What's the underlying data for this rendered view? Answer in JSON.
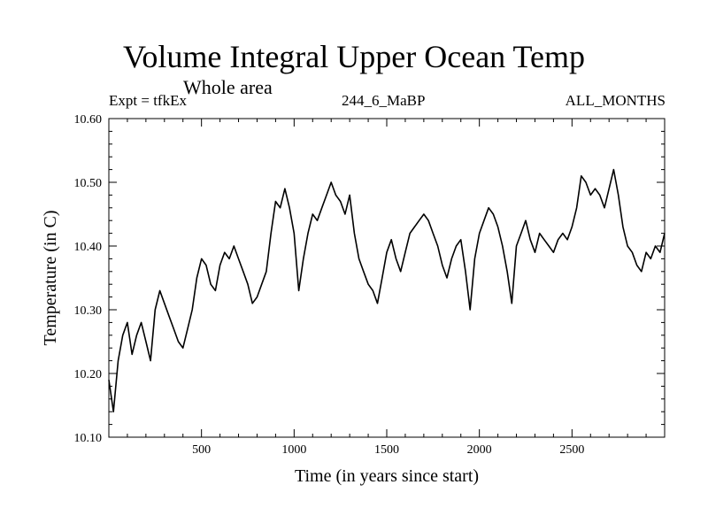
{
  "chart_data": {
    "type": "line",
    "title": "Volume Integral Upper Ocean Temp",
    "subtitle": "Whole area",
    "header_left": "Expt = tfkEx",
    "header_center": "244_6_MaBP",
    "header_right": "ALL_MONTHS",
    "xlabel": "Time (in years since start)",
    "ylabel": "Temperature (in C)",
    "xlim": [
      0,
      3000
    ],
    "ylim": [
      10.1,
      10.6
    ],
    "xticks": [
      500,
      1000,
      1500,
      2000,
      2500
    ],
    "xtick_labels": [
      "500",
      "1000",
      "1500",
      "2000",
      "2500"
    ],
    "yticks": [
      10.1,
      10.2,
      10.3,
      10.4,
      10.5,
      10.6
    ],
    "ytick_labels": [
      "10.10",
      "10.20",
      "10.30",
      "10.40",
      "10.50",
      "10.60"
    ],
    "grid": false,
    "line_color": "#000000",
    "series": [
      {
        "x": [
          0,
          25,
          50,
          75,
          100,
          125,
          150,
          175,
          200,
          225,
          250,
          275,
          300,
          325,
          350,
          375,
          400,
          425,
          450,
          475,
          500,
          525,
          550,
          575,
          600,
          625,
          650,
          675,
          700,
          725,
          750,
          775,
          800,
          825,
          850,
          875,
          900,
          925,
          950,
          975,
          1000,
          1025,
          1050,
          1075,
          1100,
          1125,
          1150,
          1175,
          1200,
          1225,
          1250,
          1275,
          1300,
          1325,
          1350,
          1375,
          1400,
          1425,
          1450,
          1475,
          1500,
          1525,
          1550,
          1575,
          1600,
          1625,
          1650,
          1675,
          1700,
          1725,
          1750,
          1775,
          1800,
          1825,
          1850,
          1875,
          1900,
          1925,
          1950,
          1975,
          2000,
          2025,
          2050,
          2075,
          2100,
          2125,
          2150,
          2175,
          2200,
          2225,
          2250,
          2275,
          2300,
          2325,
          2350,
          2375,
          2400,
          2425,
          2450,
          2475,
          2500,
          2525,
          2550,
          2575,
          2600,
          2625,
          2650,
          2675,
          2700,
          2725,
          2750,
          2775,
          2800,
          2825,
          2850,
          2875,
          2900,
          2925,
          2950,
          2975,
          3000
        ],
        "y": [
          10.19,
          10.14,
          10.22,
          10.26,
          10.28,
          10.23,
          10.26,
          10.28,
          10.25,
          10.22,
          10.3,
          10.33,
          10.31,
          10.29,
          10.27,
          10.25,
          10.24,
          10.27,
          10.3,
          10.35,
          10.38,
          10.37,
          10.34,
          10.33,
          10.37,
          10.39,
          10.38,
          10.4,
          10.38,
          10.36,
          10.34,
          10.31,
          10.32,
          10.34,
          10.36,
          10.42,
          10.47,
          10.46,
          10.49,
          10.46,
          10.42,
          10.33,
          10.38,
          10.42,
          10.45,
          10.44,
          10.46,
          10.48,
          10.5,
          10.48,
          10.47,
          10.45,
          10.48,
          10.42,
          10.38,
          10.36,
          10.34,
          10.33,
          10.31,
          10.35,
          10.39,
          10.41,
          10.38,
          10.36,
          10.39,
          10.42,
          10.43,
          10.44,
          10.45,
          10.44,
          10.42,
          10.4,
          10.37,
          10.35,
          10.38,
          10.4,
          10.41,
          10.36,
          10.3,
          10.38,
          10.42,
          10.44,
          10.46,
          10.45,
          10.43,
          10.4,
          10.36,
          10.31,
          10.4,
          10.42,
          10.44,
          10.41,
          10.39,
          10.42,
          10.41,
          10.4,
          10.39,
          10.41,
          10.42,
          10.41,
          10.43,
          10.46,
          10.51,
          10.5,
          10.48,
          10.49,
          10.48,
          10.46,
          10.49,
          10.52,
          10.48,
          10.43,
          10.4,
          10.39,
          10.37,
          10.36,
          10.39,
          10.38,
          10.4,
          10.39,
          10.42
        ]
      }
    ]
  }
}
